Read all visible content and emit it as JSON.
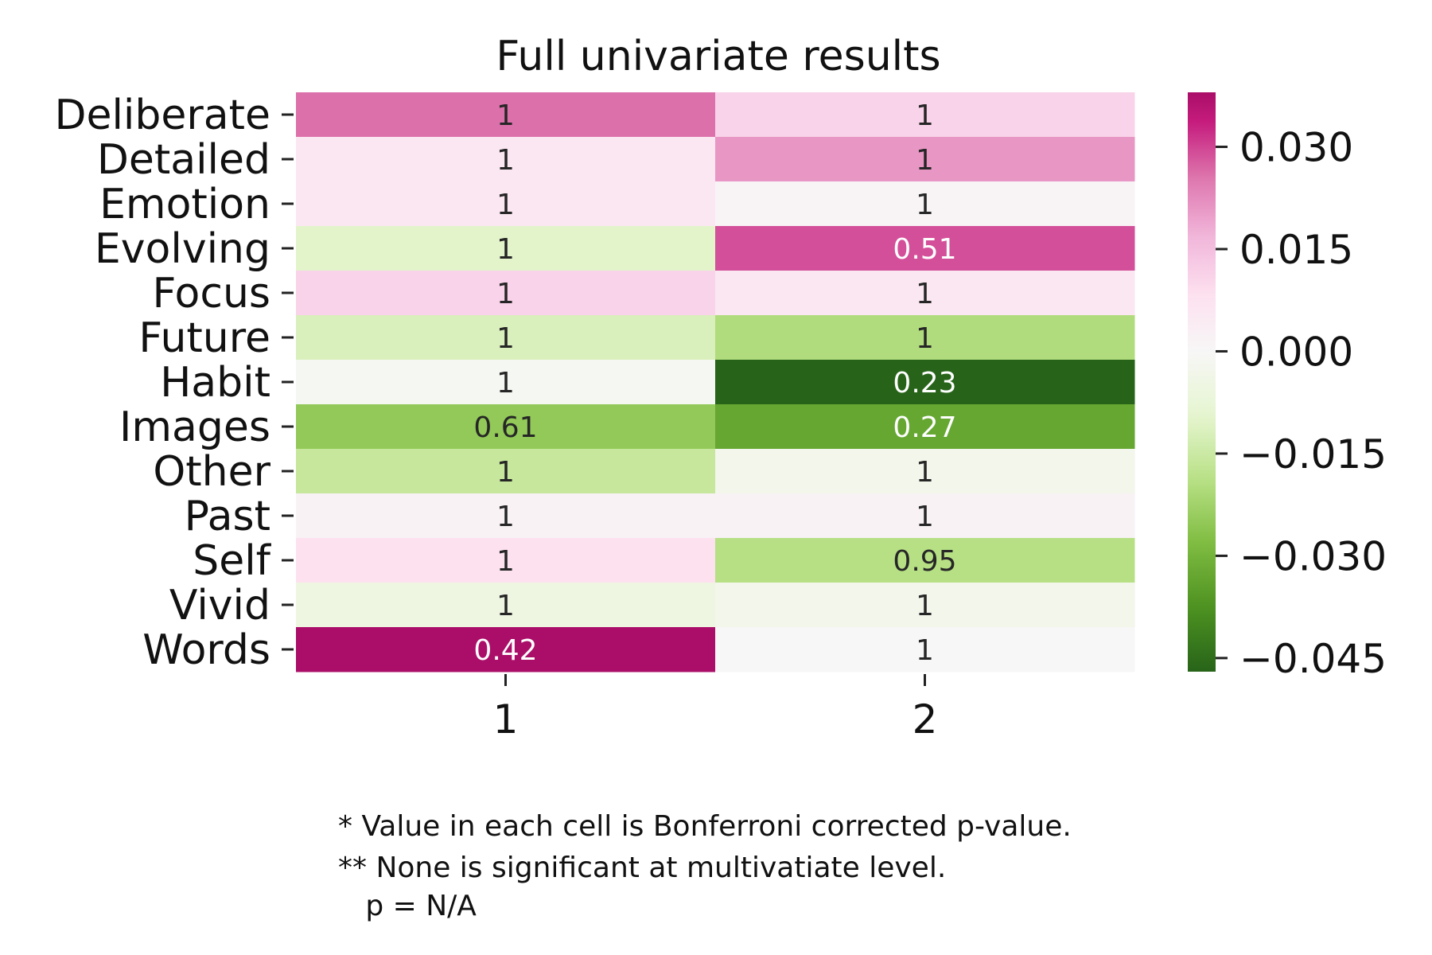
{
  "chart_data": {
    "type": "heatmap",
    "title": "Full univariate results",
    "rows": [
      "Deliberate",
      "Detailed",
      "Emotion",
      "Evolving",
      "Focus",
      "Future",
      "Habit",
      "Images",
      "Other",
      "Past",
      "Self",
      "Vivid",
      "Words"
    ],
    "columns": [
      "1",
      "2"
    ],
    "color_values": [
      [
        0.026,
        0.011
      ],
      [
        0.006,
        0.021
      ],
      [
        0.006,
        0.001
      ],
      [
        -0.01,
        0.029
      ],
      [
        0.011,
        0.006
      ],
      [
        -0.012,
        -0.02
      ],
      [
        -0.001,
        -0.047
      ],
      [
        -0.025,
        -0.033
      ],
      [
        -0.016,
        -0.003
      ],
      [
        0.002,
        0.002
      ],
      [
        0.008,
        -0.019
      ],
      [
        -0.005,
        -0.003
      ],
      [
        0.038,
        0.0
      ]
    ],
    "cell_labels": [
      [
        "1",
        "1"
      ],
      [
        "1",
        "1"
      ],
      [
        "1",
        "1"
      ],
      [
        "1",
        "0.51"
      ],
      [
        "1",
        "1"
      ],
      [
        "1",
        "1"
      ],
      [
        "1",
        "0.23"
      ],
      [
        "0.61",
        "0.27"
      ],
      [
        "1",
        "1"
      ],
      [
        "1",
        "1"
      ],
      [
        "1",
        "0.95"
      ],
      [
        "1",
        "1"
      ],
      [
        "0.42",
        "1"
      ]
    ],
    "colormap": "PiYG",
    "colorbar_range": [
      -0.047,
      0.038
    ],
    "colorbar_ticks": [
      "0.030",
      "0.015",
      "0.000",
      "−0.015",
      "−0.030",
      "−0.045"
    ],
    "colorbar_tick_values": [
      0.03,
      0.015,
      0.0,
      -0.015,
      -0.03,
      -0.045
    ]
  },
  "notes": {
    "line1": "* Value in each cell is Bonferroni corrected p-value.",
    "line2": "** None is significant at multivatiate level.",
    "line3": "   p = N/A"
  },
  "colors": {
    "pink_max": "#c0187a",
    "neutral": "#f7f7f6",
    "green_min": "#276419"
  }
}
